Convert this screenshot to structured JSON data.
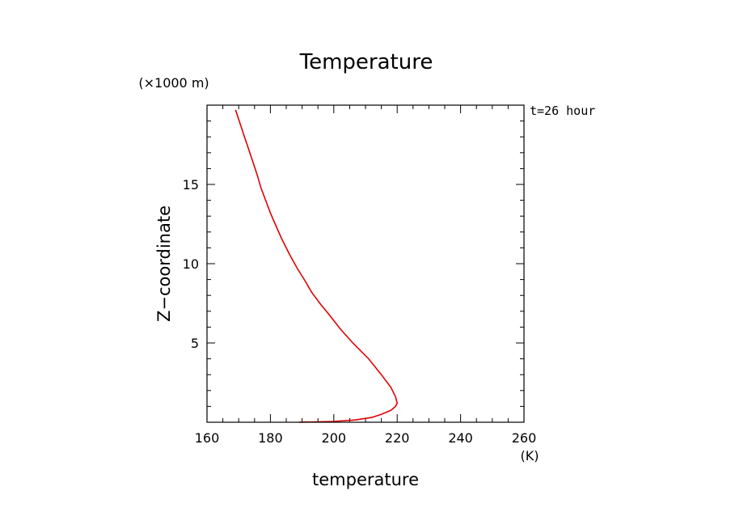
{
  "chart_data": {
    "type": "line",
    "title": "Temperature",
    "xlabel": "temperature",
    "ylabel": "Z−coordinate",
    "x_unit": "(K)",
    "y_unit": "(×1000 m)",
    "annotation": "t=26 hour",
    "xlim": [
      160,
      260
    ],
    "ylim": [
      0,
      20
    ],
    "x_ticks": [
      "160",
      "180",
      "200",
      "220",
      "240",
      "260"
    ],
    "y_ticks": [
      "5",
      "10",
      "15"
    ],
    "grid": false,
    "color": "#e00000",
    "series": [
      {
        "x": [
          189,
          200,
          207,
          212,
          215,
          218,
          219.5,
          220,
          219.5,
          218,
          215,
          211,
          206,
          202,
          198.5,
          196,
          193,
          191,
          188.5,
          186,
          183.5,
          181.5,
          180,
          178.5,
          177,
          176,
          175,
          174,
          173,
          172,
          171,
          170,
          169
        ],
        "y": [
          0,
          0.05,
          0.15,
          0.3,
          0.5,
          0.75,
          1.0,
          1.2,
          1.6,
          2.2,
          3.0,
          4.0,
          5.0,
          5.9,
          6.8,
          7.4,
          8.2,
          8.9,
          9.7,
          10.6,
          11.6,
          12.5,
          13.2,
          14.0,
          14.8,
          15.5,
          16.1,
          16.7,
          17.3,
          17.9,
          18.5,
          19.1,
          19.7
        ]
      }
    ]
  }
}
